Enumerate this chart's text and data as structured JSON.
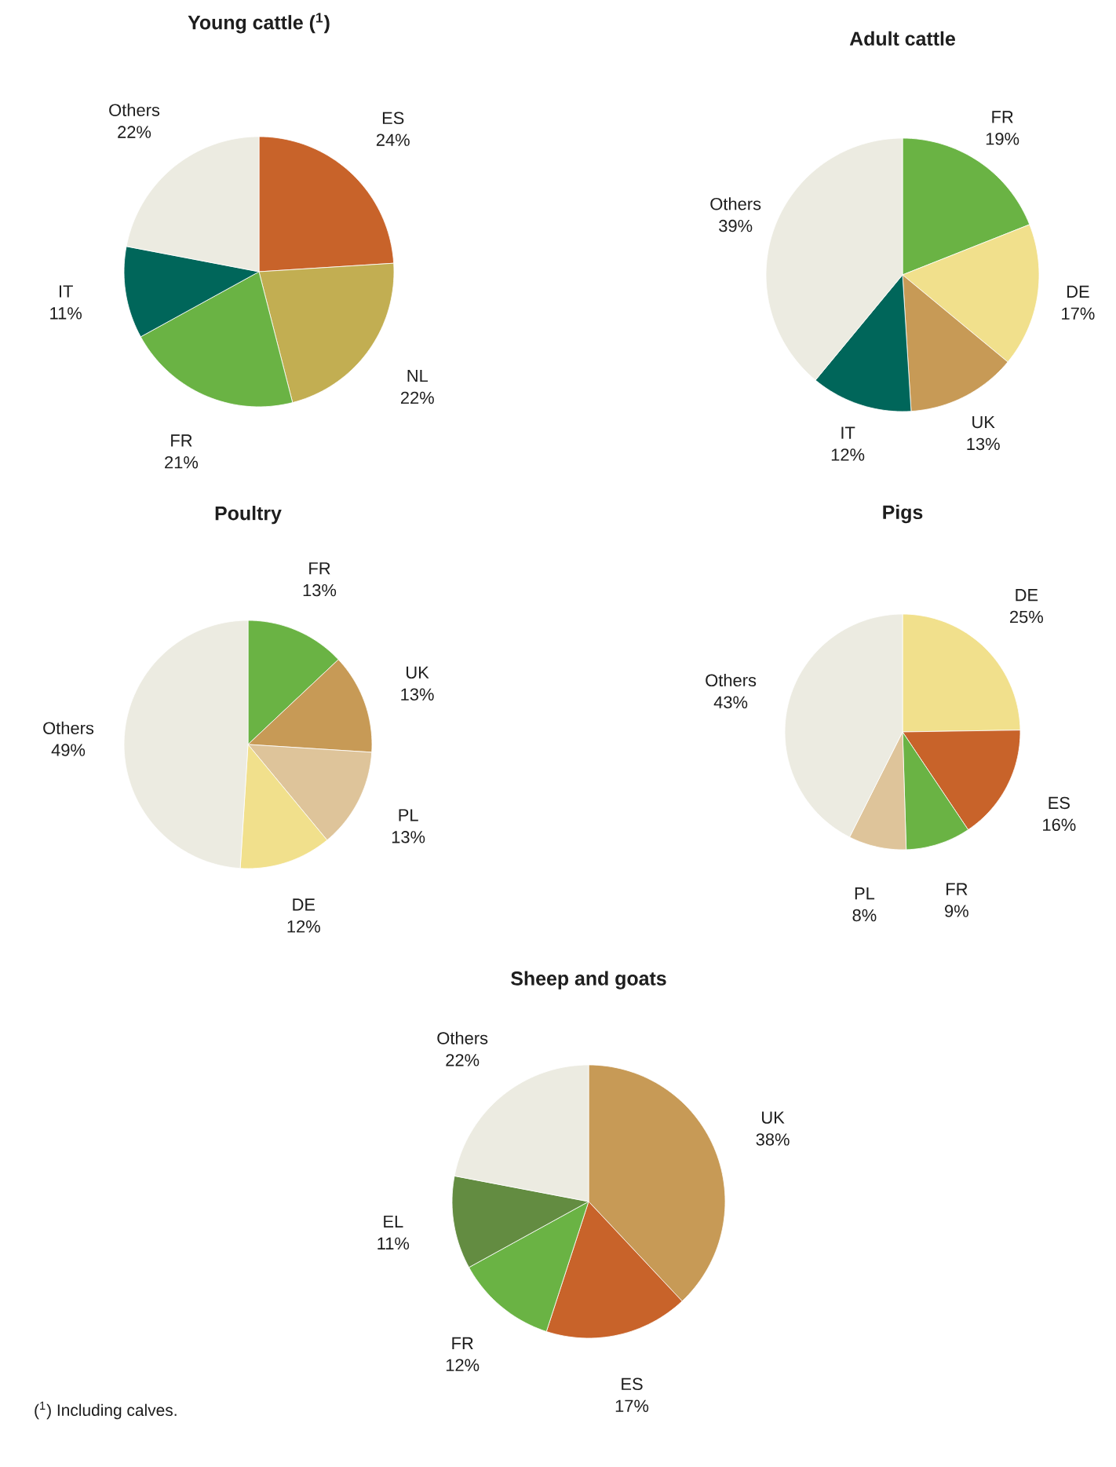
{
  "chart_data": [
    {
      "type": "pie",
      "title": "Young cattle ($^{1}$)",
      "categories": [
        "ES",
        "NL",
        "FR",
        "IT",
        "Others"
      ],
      "values": [
        24,
        22,
        21,
        11,
        22
      ],
      "value_labels": [
        "24%",
        "22%",
        "21%",
        "11%",
        "22%"
      ],
      "colors": [
        "#c8632a",
        "#c2ae52",
        "#6ab344",
        "#00665a",
        "#ecebe1"
      ]
    },
    {
      "type": "pie",
      "title": "Adult cattle",
      "categories": [
        "FR",
        "DE",
        "UK",
        "IT",
        "Others"
      ],
      "values": [
        19,
        17,
        13,
        12,
        39
      ],
      "value_labels": [
        "19%",
        "17%",
        "13%",
        "12%",
        "39%"
      ],
      "colors": [
        "#6ab344",
        "#f1e08c",
        "#c79a56",
        "#00665a",
        "#ecebe1"
      ]
    },
    {
      "type": "pie",
      "title": "Poultry",
      "categories": [
        "FR",
        "UK",
        "PL",
        "DE",
        "Others"
      ],
      "values": [
        13,
        13,
        13,
        12,
        49
      ],
      "value_labels": [
        "13%",
        "13%",
        "13%",
        "12%",
        "49%"
      ],
      "colors": [
        "#6ab344",
        "#c79a56",
        "#dec49a",
        "#f1e08c",
        "#ecebe1"
      ]
    },
    {
      "type": "pie",
      "title": "Pigs",
      "categories": [
        "DE",
        "ES",
        "FR",
        "PL",
        "Others"
      ],
      "values": [
        25,
        16,
        9,
        8,
        43
      ],
      "value_labels": [
        "25%",
        "16%",
        "9%",
        "8%",
        "43%"
      ],
      "colors": [
        "#f1e08c",
        "#c8632a",
        "#6ab344",
        "#dec49a",
        "#ecebe1"
      ]
    },
    {
      "type": "pie",
      "title": "Sheep and goats",
      "categories": [
        "UK",
        "ES",
        "FR",
        "EL",
        "Others"
      ],
      "values": [
        38,
        17,
        12,
        11,
        22
      ],
      "value_labels": [
        "38%",
        "17%",
        "12%",
        "11%",
        "22%"
      ],
      "colors": [
        "#c79a56",
        "#c8632a",
        "#6ab344",
        "#638c41",
        "#ecebe1"
      ],
      "annotations": [
        "($^{1}$) Including calves."
      ]
    }
  ]
}
